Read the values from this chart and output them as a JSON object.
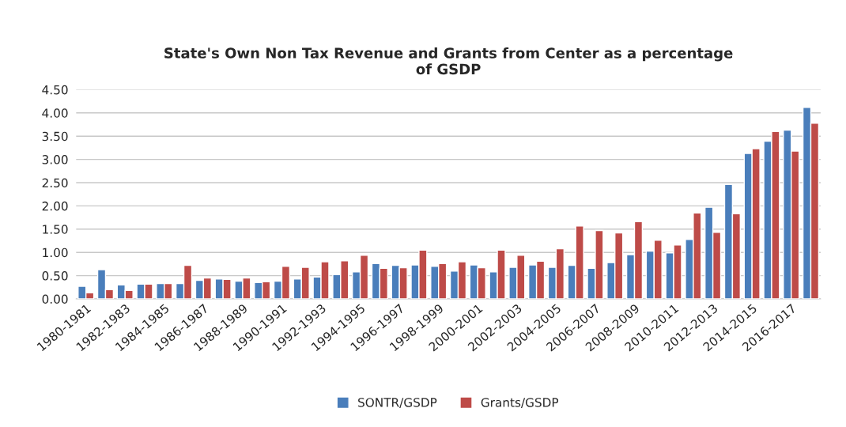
{
  "chart_data": {
    "type": "bar",
    "title": "State's Own Non Tax Revenue and Grants from Center as a percentage\nof GSDP",
    "categories": [
      "1980-1981",
      null,
      "1982-1983",
      null,
      "1984-1985",
      null,
      "1986-1987",
      null,
      "1988-1989",
      null,
      "1990-1991",
      null,
      "1992-1993",
      null,
      "1994-1995",
      null,
      "1996-1997",
      null,
      "1998-1999",
      null,
      "2000-2001",
      null,
      "2002-2003",
      null,
      "2004-2005",
      null,
      "2006-2007",
      null,
      "2008-2009",
      null,
      "2010-2011",
      null,
      "2012-2013",
      null,
      "2014-2015",
      null,
      "2016-2017",
      null
    ],
    "series": [
      {
        "name": "SONTR/GSDP",
        "color": "#4a7ebb",
        "values": [
          0.27,
          0.63,
          0.3,
          0.32,
          0.33,
          0.33,
          0.4,
          0.43,
          0.38,
          0.35,
          0.38,
          0.43,
          0.47,
          0.52,
          0.58,
          0.76,
          0.72,
          0.73,
          0.7,
          0.6,
          0.73,
          0.58,
          0.68,
          0.73,
          0.68,
          0.72,
          0.66,
          0.78,
          0.95,
          1.03,
          0.99,
          1.28,
          1.97,
          2.46,
          3.13,
          3.39,
          3.63,
          4.12
        ]
      },
      {
        "name": "Grants/GSDP",
        "color": "#be4b48",
        "values": [
          0.13,
          0.2,
          0.18,
          0.32,
          0.33,
          0.72,
          0.45,
          0.42,
          0.45,
          0.37,
          0.7,
          0.68,
          0.8,
          0.82,
          0.94,
          0.66,
          0.67,
          1.05,
          0.76,
          0.8,
          0.67,
          1.05,
          0.94,
          0.81,
          1.08,
          1.57,
          1.47,
          1.42,
          1.66,
          1.26,
          1.16,
          1.85,
          1.43,
          1.83,
          3.23,
          3.6,
          3.18,
          3.78
        ]
      }
    ],
    "ylim": [
      0,
      4.5
    ],
    "yticks": [
      {
        "value": 0,
        "label": "0.00"
      },
      {
        "value": 0.5,
        "label": "0.50"
      },
      {
        "value": 1,
        "label": "1.00"
      },
      {
        "value": 1.5,
        "label": "1.50"
      },
      {
        "value": 2,
        "label": "2.00"
      },
      {
        "value": 2.5,
        "label": "2.50"
      },
      {
        "value": 3,
        "label": "3.00"
      },
      {
        "value": 3.5,
        "label": "3.50"
      },
      {
        "value": 4,
        "label": "4.00"
      },
      {
        "value": 4.5,
        "label": "4.50"
      }
    ],
    "grid": "y",
    "legend": "bottom"
  }
}
